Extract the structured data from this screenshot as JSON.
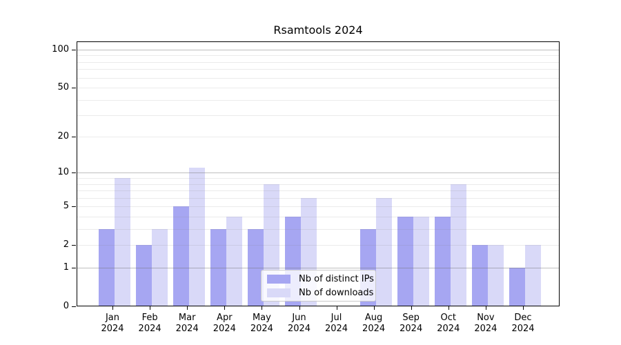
{
  "chart_data": {
    "type": "bar",
    "title": "Rsamtools 2024",
    "categories": [
      "Jan 2024",
      "Feb 2024",
      "Mar 2024",
      "Apr 2024",
      "May 2024",
      "Jun 2024",
      "Jul 2024",
      "Aug 2024",
      "Sep 2024",
      "Oct 2024",
      "Nov 2024",
      "Dec 2024"
    ],
    "series": [
      {
        "name": "Nb of distinct IPs",
        "color": "#a6a6f2",
        "values": [
          3,
          2,
          5,
          3,
          3,
          4,
          0,
          3,
          4,
          4,
          2,
          1
        ]
      },
      {
        "name": "Nb of downloads",
        "color": "#d9d9f8",
        "values": [
          9,
          3,
          11,
          4,
          8,
          6,
          0,
          6,
          4,
          8,
          2,
          2
        ]
      }
    ],
    "yticks": [
      0,
      1,
      2,
      5,
      10,
      20,
      50,
      100
    ],
    "yscale": "log10(value+1)",
    "ylim": [
      0,
      116
    ],
    "xlabel": "",
    "ylabel": "",
    "grid": true,
    "legend_position": "lower center"
  }
}
